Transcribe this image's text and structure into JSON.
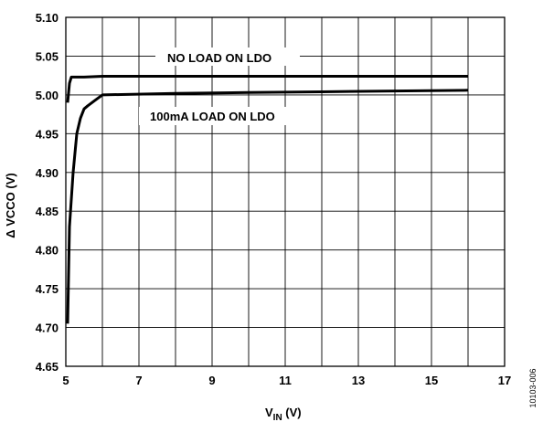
{
  "chart_data": {
    "type": "line",
    "xlabel": "V",
    "xlabel_subscript": "IN",
    "xlabel_unit": " (V)",
    "ylabel": "Δ VCCO (V)",
    "xlim": [
      5,
      17
    ],
    "ylim": [
      4.65,
      5.1
    ],
    "x_ticks": [
      5,
      7,
      9,
      11,
      13,
      15,
      17
    ],
    "y_ticks": [
      4.65,
      4.7,
      4.75,
      4.8,
      4.85,
      4.9,
      4.95,
      5.0,
      5.05,
      5.1
    ],
    "x_tick_labels": [
      "5",
      "7",
      "9",
      "11",
      "13",
      "15",
      "17"
    ],
    "y_tick_labels": [
      "4.65",
      "4.70",
      "4.75",
      "4.80",
      "4.85",
      "4.90",
      "4.95",
      "5.00",
      "5.05",
      "5.10"
    ],
    "x_grid_step": 1,
    "grid": true,
    "series": [
      {
        "name": "NO LOAD ON LDO",
        "x": [
          5.05,
          5.1,
          5.15,
          5.5,
          6.0,
          8.0,
          10.0,
          12.0,
          14.0,
          16.0
        ],
        "y": [
          4.99,
          5.015,
          5.023,
          5.023,
          5.024,
          5.024,
          5.024,
          5.024,
          5.024,
          5.024
        ]
      },
      {
        "name": "100mA LOAD ON LDO",
        "x": [
          5.05,
          5.1,
          5.2,
          5.3,
          5.4,
          5.5,
          5.6,
          5.8,
          6.0,
          8.0,
          10.0,
          12.0,
          14.0,
          16.0
        ],
        "y": [
          4.705,
          4.83,
          4.9,
          4.95,
          4.97,
          4.982,
          4.986,
          4.993,
          5.0,
          5.002,
          5.003,
          5.004,
          5.005,
          5.006
        ]
      }
    ]
  },
  "figure_id": "10103-006"
}
